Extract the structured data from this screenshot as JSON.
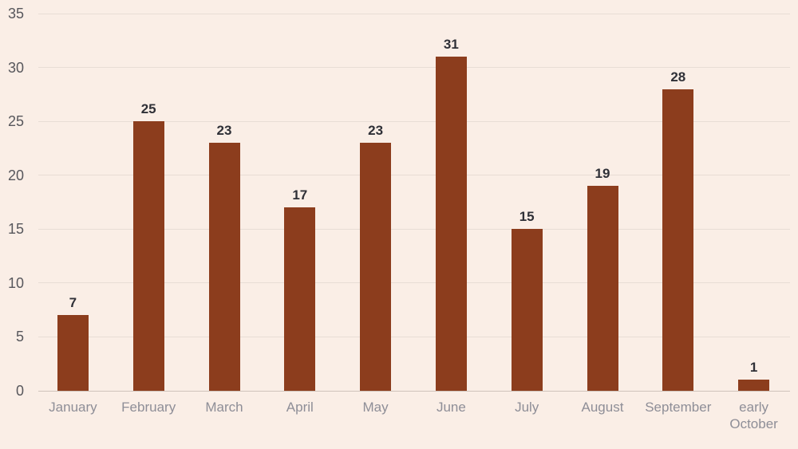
{
  "chart_data": {
    "type": "bar",
    "title": "",
    "xlabel": "",
    "ylabel": "",
    "categories": [
      "January",
      "February",
      "March",
      "April",
      "May",
      "June",
      "July",
      "August",
      "September",
      "early October"
    ],
    "values": [
      7,
      25,
      23,
      17,
      23,
      31,
      15,
      19,
      28,
      1
    ],
    "yticks": [
      0,
      5,
      10,
      15,
      20,
      25,
      30,
      35
    ],
    "ylim": [
      0,
      35
    ],
    "grid": "horizontal",
    "legend": "none",
    "value_labels_shown": true
  },
  "style": {
    "background_color": "#faeee6",
    "bar_color": "#8c3d1d",
    "grid_line_color": "#e8ddd5",
    "zero_line_color": "#cfc3bb",
    "y_tick_label_color": "#57575c",
    "x_tick_label_color": "#8e8e97",
    "value_label_color": "#2f3037"
  }
}
